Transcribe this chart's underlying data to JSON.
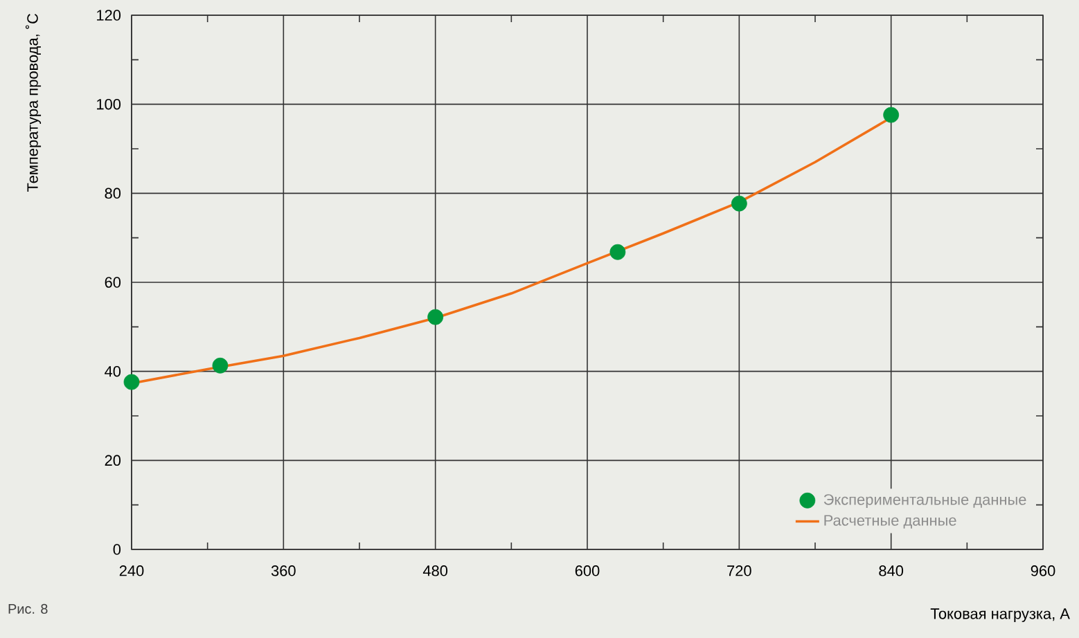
{
  "chart_data": {
    "type": "line",
    "xlabel": "Токовая нагрузка, А",
    "ylabel": "Температура провода, ˚С",
    "annotations": [
      "Рис. 8"
    ],
    "xlim": [
      240,
      960
    ],
    "ylim": [
      0,
      120
    ],
    "xticks": [
      240,
      360,
      480,
      600,
      720,
      840,
      960,
      {
        "value": 300,
        "label": null
      },
      {
        "value": 420,
        "label": null
      },
      {
        "value": 540,
        "label": null
      },
      {
        "value": 660,
        "label": null
      },
      {
        "value": 780,
        "label": null
      },
      {
        "value": 900,
        "label": null
      }
    ],
    "yticks": [
      0,
      20,
      40,
      60,
      80,
      100,
      120,
      {
        "value": 10,
        "label": null
      },
      {
        "value": 30,
        "label": null
      },
      {
        "value": 50,
        "label": null
      },
      {
        "value": 70,
        "label": null
      },
      {
        "value": 90,
        "label": null
      },
      {
        "value": 110,
        "label": null
      }
    ],
    "grid": true,
    "legend": "bottom right",
    "series": [
      {
        "name": "Экспериментальные данные",
        "type": "scatter",
        "marker": "circle",
        "color": "#009a3e",
        "x": [
          240,
          310,
          480,
          624,
          720,
          840
        ],
        "values": [
          37.6,
          41.3,
          52.2,
          66.8,
          77.7,
          97.6
        ]
      },
      {
        "name": "Расчетные данные",
        "marker": "none",
        "line_style": "solid",
        "color": "#f07018",
        "x": [
          240,
          300,
          360,
          420,
          480,
          540,
          600,
          660,
          720,
          780,
          840
        ],
        "values": [
          37.3,
          40.5,
          43.5,
          47.5,
          52,
          57.5,
          64.3,
          71,
          78,
          87,
          97
        ]
      }
    ]
  }
}
